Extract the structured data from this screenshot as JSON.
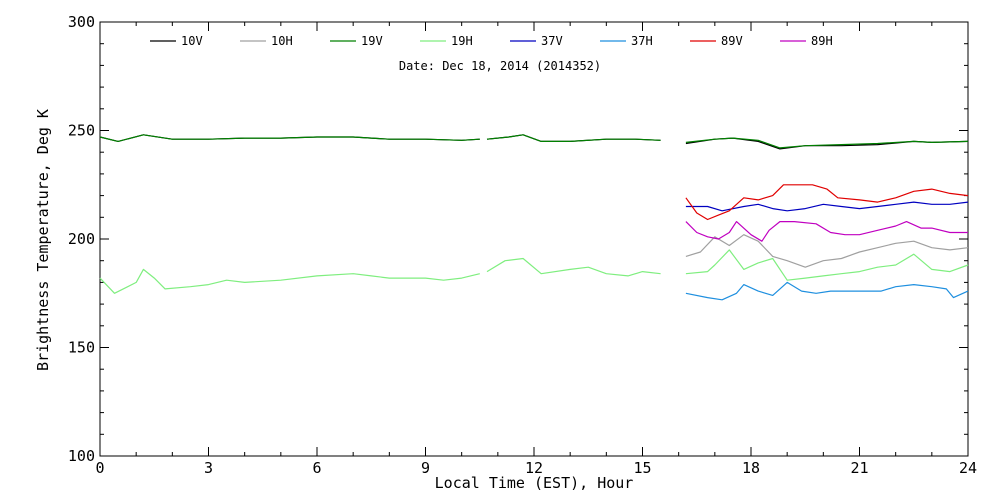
{
  "chart_data": {
    "type": "line",
    "title": "",
    "annotation": "Date: Dec 18, 2014 (2014352)",
    "xlabel": "Local Time (EST), Hour",
    "ylabel": "Brightness Temperature, Deg K",
    "xlim": [
      0,
      24
    ],
    "ylim": [
      100,
      300
    ],
    "xticks": [
      0,
      3,
      6,
      9,
      12,
      15,
      18,
      21,
      24
    ],
    "yticks": [
      100,
      150,
      200,
      250,
      300
    ],
    "grid": false,
    "legend_position": "top",
    "series": [
      {
        "name": "10V",
        "color": "#000000",
        "segments": [
          [
            [
              0,
              247
            ],
            [
              0.5,
              245
            ],
            [
              1.2,
              248
            ],
            [
              2,
              246
            ],
            [
              3,
              246
            ],
            [
              4,
              246.5
            ],
            [
              5,
              246.5
            ],
            [
              6,
              247
            ],
            [
              7,
              247
            ],
            [
              8,
              246
            ],
            [
              9,
              246
            ],
            [
              10,
              245.5
            ],
            [
              10.5,
              246
            ]
          ],
          [
            [
              10.7,
              246
            ],
            [
              11.3,
              247
            ],
            [
              11.7,
              248
            ],
            [
              12.2,
              245
            ],
            [
              13,
              245
            ],
            [
              14,
              246
            ],
            [
              14.8,
              246
            ],
            [
              15.5,
              245.5
            ]
          ],
          [
            [
              16.2,
              244
            ],
            [
              17,
              246
            ],
            [
              17.5,
              246.5
            ],
            [
              18.2,
              245
            ],
            [
              18.8,
              241.5
            ],
            [
              19.5,
              243
            ],
            [
              20.5,
              243
            ],
            [
              21.5,
              243.5
            ],
            [
              22.5,
              245
            ],
            [
              23,
              244.5
            ],
            [
              24,
              245
            ]
          ]
        ]
      },
      {
        "name": "10H",
        "color": "#a0a0a0",
        "segments": [
          [
            [
              16.2,
              192
            ],
            [
              16.6,
              194
            ],
            [
              17,
              201
            ],
            [
              17.4,
              197
            ],
            [
              17.8,
              202
            ],
            [
              18.2,
              199
            ],
            [
              18.6,
              192
            ],
            [
              19,
              190
            ],
            [
              19.5,
              187
            ],
            [
              20,
              190
            ],
            [
              20.5,
              191
            ],
            [
              21,
              194
            ],
            [
              21.5,
              196
            ],
            [
              22,
              198
            ],
            [
              22.5,
              199
            ],
            [
              23,
              196
            ],
            [
              23.5,
              195
            ],
            [
              24,
              196
            ]
          ]
        ]
      },
      {
        "name": "19V",
        "color": "#008000",
        "segments": [
          [
            [
              0,
              247
            ],
            [
              0.5,
              245
            ],
            [
              1.2,
              248
            ],
            [
              2,
              246
            ],
            [
              3,
              246
            ],
            [
              4,
              246.5
            ],
            [
              5,
              246.5
            ],
            [
              6,
              247
            ],
            [
              7,
              247
            ],
            [
              8,
              246
            ],
            [
              9,
              246
            ],
            [
              10,
              245.5
            ],
            [
              10.5,
              246
            ]
          ],
          [
            [
              10.7,
              246
            ],
            [
              11.3,
              247
            ],
            [
              11.7,
              248
            ],
            [
              12.2,
              245
            ],
            [
              13,
              245
            ],
            [
              14,
              246
            ],
            [
              14.8,
              246
            ],
            [
              15.5,
              245.5
            ]
          ],
          [
            [
              16.2,
              244.5
            ],
            [
              17,
              246
            ],
            [
              17.5,
              246.5
            ],
            [
              18.2,
              245.5
            ],
            [
              18.8,
              242
            ],
            [
              19.5,
              243
            ],
            [
              20.5,
              243.5
            ],
            [
              21.5,
              244
            ],
            [
              22.5,
              245
            ],
            [
              23,
              244.5
            ],
            [
              24,
              245
            ]
          ]
        ]
      },
      {
        "name": "19H",
        "color": "#7fee7f",
        "segments": [
          [
            [
              0,
              182
            ],
            [
              0.4,
              175
            ],
            [
              1,
              180
            ],
            [
              1.2,
              186
            ],
            [
              1.5,
              182
            ],
            [
              1.8,
              177
            ],
            [
              2.5,
              178
            ],
            [
              3,
              179
            ],
            [
              3.5,
              181
            ],
            [
              4,
              180
            ],
            [
              5,
              181
            ],
            [
              6,
              183
            ],
            [
              7,
              184
            ],
            [
              7.5,
              183
            ],
            [
              8,
              182
            ],
            [
              9,
              182
            ],
            [
              9.5,
              181
            ],
            [
              10,
              182
            ],
            [
              10.5,
              184
            ]
          ],
          [
            [
              10.7,
              185
            ],
            [
              11.2,
              190
            ],
            [
              11.7,
              191
            ],
            [
              12.2,
              184
            ],
            [
              13,
              186
            ],
            [
              13.5,
              187
            ],
            [
              14,
              184
            ],
            [
              14.6,
              183
            ],
            [
              15,
              185
            ],
            [
              15.5,
              184
            ]
          ],
          [
            [
              16.2,
              184
            ],
            [
              16.8,
              185
            ],
            [
              17,
              188
            ],
            [
              17.4,
              195
            ],
            [
              17.8,
              186
            ],
            [
              18.2,
              189
            ],
            [
              18.6,
              191
            ],
            [
              19,
              181
            ],
            [
              19.5,
              182
            ],
            [
              20,
              183
            ],
            [
              20.5,
              184
            ],
            [
              21,
              185
            ],
            [
              21.5,
              187
            ],
            [
              22,
              188
            ],
            [
              22.5,
              193
            ],
            [
              23,
              186
            ],
            [
              23.5,
              185
            ],
            [
              24,
              188
            ]
          ]
        ]
      },
      {
        "name": "37V",
        "color": "#0000c0",
        "segments": [
          [
            [
              16.2,
              215
            ],
            [
              16.8,
              215
            ],
            [
              17.2,
              213
            ],
            [
              17.8,
              215
            ],
            [
              18.2,
              216
            ],
            [
              18.6,
              214
            ],
            [
              19,
              213
            ],
            [
              19.5,
              214
            ],
            [
              20,
              216
            ],
            [
              20.5,
              215
            ],
            [
              21,
              214
            ],
            [
              21.5,
              215
            ],
            [
              22,
              216
            ],
            [
              22.5,
              217
            ],
            [
              23,
              216
            ],
            [
              23.5,
              216
            ],
            [
              24,
              217
            ]
          ]
        ]
      },
      {
        "name": "37H",
        "color": "#1e8fdf",
        "segments": [
          [
            [
              16.2,
              175
            ],
            [
              16.8,
              173
            ],
            [
              17.2,
              172
            ],
            [
              17.6,
              175
            ],
            [
              17.8,
              179
            ],
            [
              18.2,
              176
            ],
            [
              18.6,
              174
            ],
            [
              19,
              180
            ],
            [
              19.4,
              176
            ],
            [
              19.8,
              175
            ],
            [
              20.2,
              176
            ],
            [
              21,
              176
            ],
            [
              21.6,
              176
            ],
            [
              22,
              178
            ],
            [
              22.5,
              179
            ],
            [
              23,
              178
            ],
            [
              23.4,
              177
            ],
            [
              23.6,
              173
            ],
            [
              24,
              176
            ]
          ]
        ]
      },
      {
        "name": "89V",
        "color": "#e00000",
        "segments": [
          [
            [
              16.2,
              219
            ],
            [
              16.5,
              212
            ],
            [
              16.8,
              209
            ],
            [
              17.1,
              211
            ],
            [
              17.4,
              213
            ],
            [
              17.8,
              219
            ],
            [
              18.2,
              218
            ],
            [
              18.6,
              220
            ],
            [
              18.9,
              225
            ],
            [
              19.3,
              225
            ],
            [
              19.7,
              225
            ],
            [
              20.1,
              223
            ],
            [
              20.4,
              219
            ],
            [
              21,
              218
            ],
            [
              21.5,
              217
            ],
            [
              22,
              219
            ],
            [
              22.5,
              222
            ],
            [
              23,
              223
            ],
            [
              23.5,
              221
            ],
            [
              24,
              220
            ]
          ]
        ]
      },
      {
        "name": "89H",
        "color": "#c000c0",
        "segments": [
          [
            [
              16.2,
              208
            ],
            [
              16.5,
              203
            ],
            [
              16.8,
              201
            ],
            [
              17.1,
              200
            ],
            [
              17.4,
              203
            ],
            [
              17.6,
              208
            ],
            [
              18,
              202
            ],
            [
              18.3,
              199
            ],
            [
              18.5,
              204
            ],
            [
              18.8,
              208
            ],
            [
              19.2,
              208
            ],
            [
              19.8,
              207
            ],
            [
              20.2,
              203
            ],
            [
              20.6,
              202
            ],
            [
              21,
              202
            ],
            [
              21.5,
              204
            ],
            [
              22,
              206
            ],
            [
              22.3,
              208
            ],
            [
              22.7,
              205
            ],
            [
              23,
              205
            ],
            [
              23.5,
              203
            ],
            [
              24,
              203
            ]
          ]
        ]
      }
    ]
  }
}
